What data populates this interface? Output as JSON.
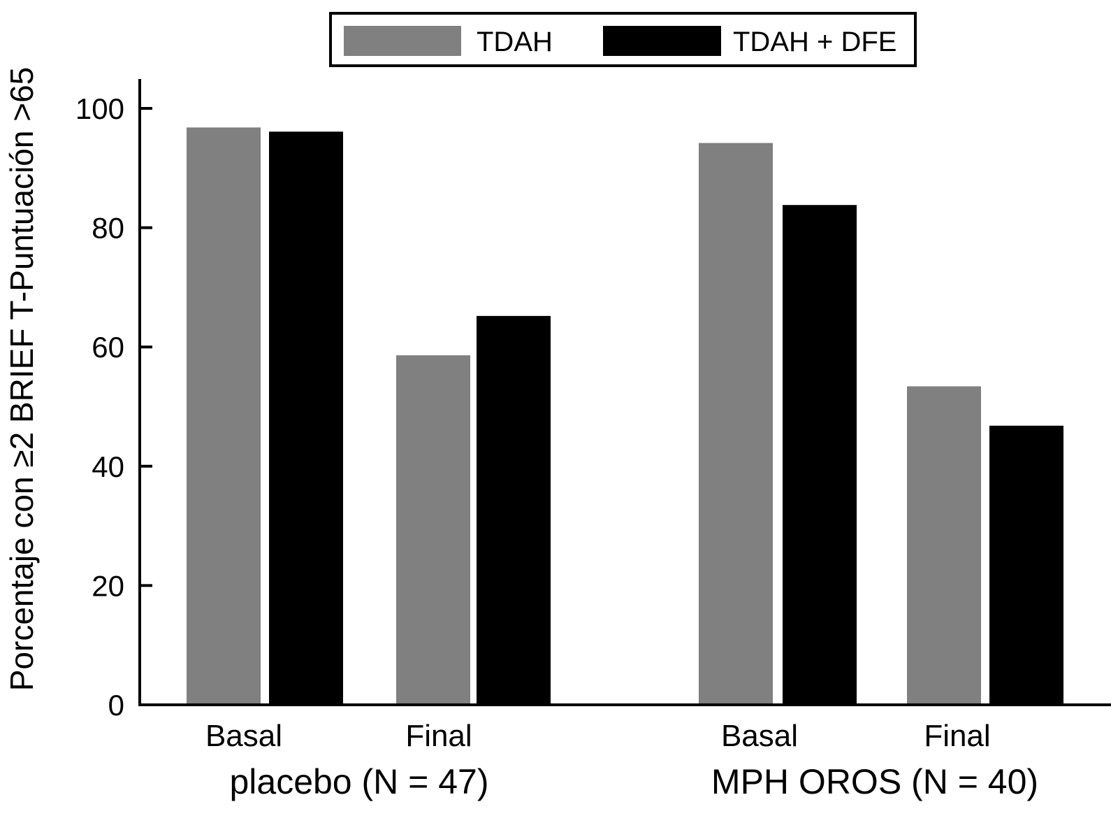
{
  "chart_data": {
    "type": "bar",
    "ylabel": "Porcentaje con ≥2 BRIEF T-Puntuación >65",
    "xlabel": "",
    "ylim": [
      0,
      105
    ],
    "yticks": [
      "0",
      "20",
      "40",
      "60",
      "80",
      "100"
    ],
    "legend_position": "top-center",
    "grid": false,
    "groups": [
      {
        "label": "placebo (N = 47)",
        "categories": [
          "Basal",
          "Final"
        ]
      },
      {
        "label": "MPH OROS (N = 40)",
        "categories": [
          "Basal",
          "Final"
        ]
      }
    ],
    "series": [
      {
        "name": "TDAH",
        "color": "#808080",
        "values": [
          96.8,
          58.6,
          94.2,
          53.4
        ]
      },
      {
        "name": "TDAH + DFE",
        "color": "#000000",
        "values": [
          96.1,
          65.2,
          83.8,
          46.8
        ]
      }
    ]
  }
}
